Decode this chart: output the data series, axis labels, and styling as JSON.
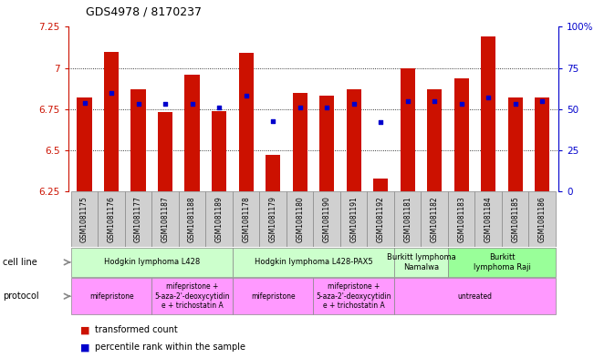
{
  "title": "GDS4978 / 8170237",
  "samples": [
    "GSM1081175",
    "GSM1081176",
    "GSM1081177",
    "GSM1081187",
    "GSM1081188",
    "GSM1081189",
    "GSM1081178",
    "GSM1081179",
    "GSM1081180",
    "GSM1081190",
    "GSM1081191",
    "GSM1081192",
    "GSM1081181",
    "GSM1081182",
    "GSM1081183",
    "GSM1081184",
    "GSM1081185",
    "GSM1081186"
  ],
  "bar_values": [
    6.82,
    7.1,
    6.87,
    6.73,
    6.96,
    6.74,
    7.09,
    6.47,
    6.85,
    6.83,
    6.87,
    6.33,
    7.0,
    6.87,
    6.94,
    7.19,
    6.82,
    6.82
  ],
  "dot_values": [
    54,
    60,
    53,
    53,
    53,
    51,
    58,
    43,
    51,
    51,
    53,
    42,
    55,
    55,
    53,
    57,
    53,
    55
  ],
  "ylim_left": [
    6.25,
    7.25
  ],
  "ylim_right": [
    0,
    100
  ],
  "yticks_left": [
    6.25,
    6.5,
    6.75,
    7.0,
    7.25
  ],
  "ytick_labels_left": [
    "6.25",
    "6.5",
    "6.75",
    "7",
    "7.25"
  ],
  "yticks_right": [
    0,
    25,
    50,
    75,
    100
  ],
  "ytick_labels_right": [
    "0",
    "25",
    "50",
    "75",
    "100%"
  ],
  "bar_color": "#cc1100",
  "dot_color": "#0000cc",
  "bg_color": "#ffffff",
  "cell_line_groups": [
    {
      "label": "Hodgkin lymphoma L428",
      "start": 0,
      "end": 6,
      "color": "#ccffcc"
    },
    {
      "label": "Hodgkin lymphoma L428-PAX5",
      "start": 6,
      "end": 12,
      "color": "#ccffcc"
    },
    {
      "label": "Burkitt lymphoma\nNamalwa",
      "start": 12,
      "end": 14,
      "color": "#ccffcc"
    },
    {
      "label": "Burkitt\nlymphoma Raji",
      "start": 14,
      "end": 18,
      "color": "#99ff99"
    }
  ],
  "protocol_groups": [
    {
      "label": "mifepristone",
      "start": 0,
      "end": 3,
      "color": "#ff99ff"
    },
    {
      "label": "mifepristone +\n5-aza-2'-deoxycytidin\ne + trichostatin A",
      "start": 3,
      "end": 6,
      "color": "#ff99ff"
    },
    {
      "label": "mifepristone",
      "start": 6,
      "end": 9,
      "color": "#ff99ff"
    },
    {
      "label": "mifepristone +\n5-aza-2'-deoxycytidin\ne + trichostatin A",
      "start": 9,
      "end": 12,
      "color": "#ff99ff"
    },
    {
      "label": "untreated",
      "start": 12,
      "end": 18,
      "color": "#ff99ff"
    }
  ],
  "legend_items": [
    {
      "label": "transformed count",
      "color": "#cc1100"
    },
    {
      "label": "percentile rank within the sample",
      "color": "#0000cc"
    }
  ],
  "xlabel_box_color": "#d0d0d0",
  "left_labels_color": "#808080"
}
